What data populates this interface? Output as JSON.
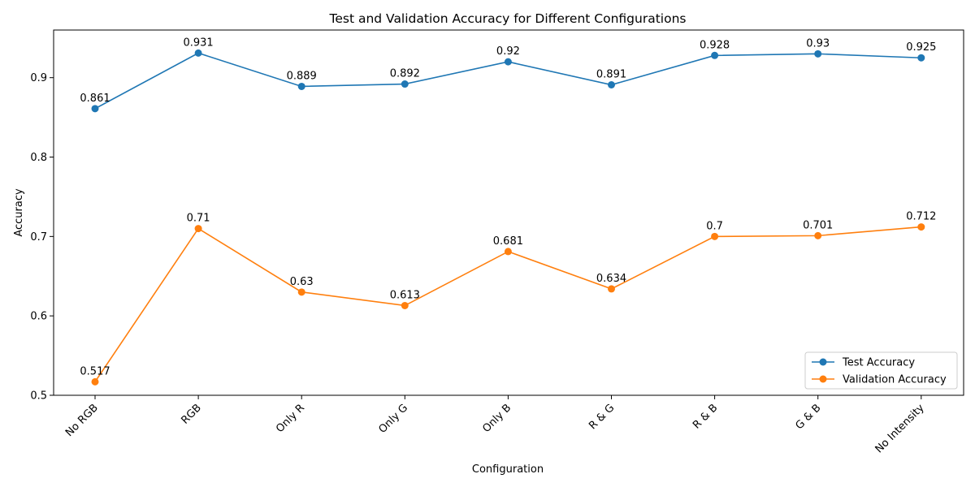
{
  "chart_data": {
    "type": "line",
    "title": "Test and Validation Accuracy for Different Configurations",
    "xlabel": "Configuration",
    "ylabel": "Accuracy",
    "categories": [
      "No RGB",
      "RGB",
      "Only R",
      "Only G",
      "Only B",
      "R & G",
      "R & B",
      "G & B",
      "No Intensity"
    ],
    "ylim": [
      0.5,
      0.96
    ],
    "yticks": [
      0.5,
      0.6,
      0.7,
      0.8,
      0.9
    ],
    "ytick_labels": [
      "0.5",
      "0.6",
      "0.7",
      "0.8",
      "0.9"
    ],
    "grid": false,
    "legend_position": "lower-right",
    "series": [
      {
        "name": "Test Accuracy",
        "color": "#1f77b4",
        "values": [
          0.861,
          0.931,
          0.889,
          0.892,
          0.92,
          0.891,
          0.928,
          0.93,
          0.925
        ],
        "labels": [
          "0.861",
          "0.931",
          "0.889",
          "0.892",
          "0.92",
          "0.891",
          "0.928",
          "0.93",
          "0.925"
        ]
      },
      {
        "name": "Validation Accuracy",
        "color": "#ff7f0e",
        "values": [
          0.517,
          0.71,
          0.63,
          0.613,
          0.681,
          0.634,
          0.7,
          0.701,
          0.712
        ],
        "labels": [
          "0.517",
          "0.71",
          "0.63",
          "0.613",
          "0.681",
          "0.634",
          "0.7",
          "0.701",
          "0.712"
        ]
      }
    ]
  }
}
